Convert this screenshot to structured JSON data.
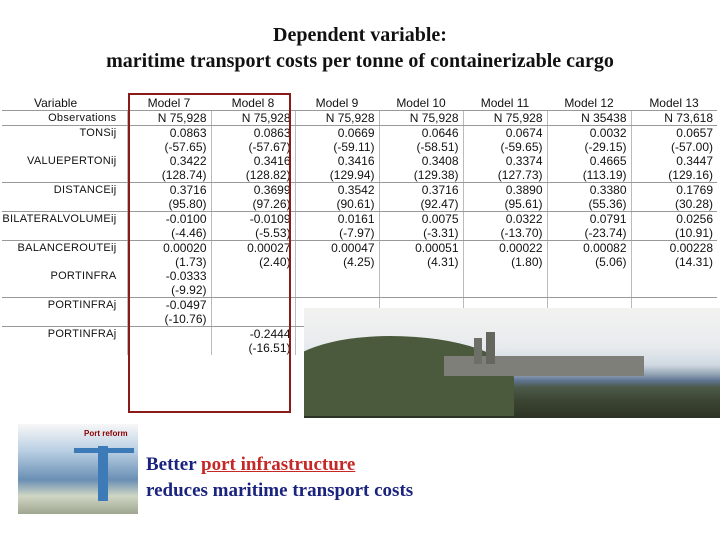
{
  "title": {
    "line1": "Dependent variable:",
    "line2": "maritime transport costs per tonne of containerizable cargo"
  },
  "table": {
    "header": [
      "Variable",
      "Model 7",
      "Model 8",
      "Model 9",
      "Model 10",
      "Model 11",
      "Model 12",
      "Model 13"
    ],
    "rows": [
      {
        "var": "Observations",
        "vals": [
          "N 75,928",
          "N 75,928",
          "N 75,928",
          "N 75,928",
          "N 75,928",
          "N 35438",
          "N 73,618"
        ],
        "end": true
      },
      {
        "var": "TONSij",
        "vals": [
          "0.0863",
          "0.0863",
          "0.0669",
          "0.0646",
          "0.0674",
          "0.0032",
          "0.0657"
        ],
        "end": false
      },
      {
        "var": "",
        "vals": [
          "(-57.65)",
          "(-57.67)",
          "(-59.11)",
          "(-58.51)",
          "(-59.65)",
          "(-29.15)",
          "(-57.00)"
        ],
        "end": false
      },
      {
        "var": "VALUEPERTONij",
        "vals": [
          "0.3422",
          "0.3416",
          "0.3416",
          "0.3408",
          "0.3374",
          "0.4665",
          "0.3447"
        ],
        "end": false
      },
      {
        "var": "",
        "vals": [
          "(128.74)",
          "(128.82)",
          "(129.94)",
          "(129.38)",
          "(127.73)",
          "(113.19)",
          "(129.16)"
        ],
        "end": true
      },
      {
        "var": "DISTANCEij",
        "vals": [
          "0.3716",
          "0.3699",
          "0.3542",
          "0.3716",
          "0.3890",
          "0.3380",
          "0.1769"
        ],
        "end": false
      },
      {
        "var": "",
        "vals": [
          "(95.80)",
          "(97.26)",
          "(90.61)",
          "(92.47)",
          "(95.61)",
          "(55.36)",
          "(30.28)"
        ],
        "end": true
      },
      {
        "var": "BILATERALVOLUMEij",
        "vals": [
          "-0.0100",
          "-0.0109",
          "0.0161",
          "0.0075",
          "0.0322",
          "0.0791",
          "0.0256"
        ],
        "end": false
      },
      {
        "var": "",
        "vals": [
          "(-4.46)",
          "(-5.53)",
          "(-7.97)",
          "(-3.31)",
          "(-13.70)",
          "(-23.74)",
          "(10.91)"
        ],
        "end": true
      },
      {
        "var": "BALANCEROUTEij",
        "vals": [
          "0.00020",
          "0.00027",
          "0.00047",
          "0.00051",
          "0.00022",
          "0.00082",
          "0.00228"
        ],
        "end": false
      },
      {
        "var": "",
        "vals": [
          "(1.73)",
          "(2.40)",
          "(4.25)",
          "(4.31)",
          "(1.80)",
          "(5.06)",
          "(14.31)"
        ],
        "end": false
      },
      {
        "var": "PORTINFRA",
        "vals": [
          "-0.0333",
          "",
          "",
          "",
          "",
          "",
          ""
        ],
        "end": false
      },
      {
        "var": "",
        "vals": [
          "(-9.92)",
          "",
          "",
          "",
          "",
          "",
          ""
        ],
        "end": true
      },
      {
        "var": "PORTINFRAj",
        "vals": [
          "-0.0497",
          "",
          "",
          "",
          "",
          "",
          ""
        ],
        "end": false
      },
      {
        "var": "",
        "vals": [
          "(-10.76)",
          "",
          "",
          "",
          "",
          "",
          ""
        ],
        "end": true
      },
      {
        "var": "PORTINFRAj",
        "vals": [
          "",
          "-0.2444",
          "",
          "",
          "",
          "",
          ""
        ],
        "end": false
      },
      {
        "var": "",
        "vals": [
          "",
          "(-16.51)",
          "",
          "",
          "",
          "",
          ""
        ],
        "end": false
      }
    ]
  },
  "crane_photo_label": "Port reform",
  "caption": {
    "line1_prefix": "Better ",
    "line1_emph": "port infrastructure",
    "line2": "reduces maritime transport costs"
  },
  "colors": {
    "highlight_border": "#8b1a1a",
    "caption_text": "#1a237e",
    "caption_emph": "#c62828"
  },
  "icons": [
    "harbor-photo",
    "crane-photo"
  ]
}
